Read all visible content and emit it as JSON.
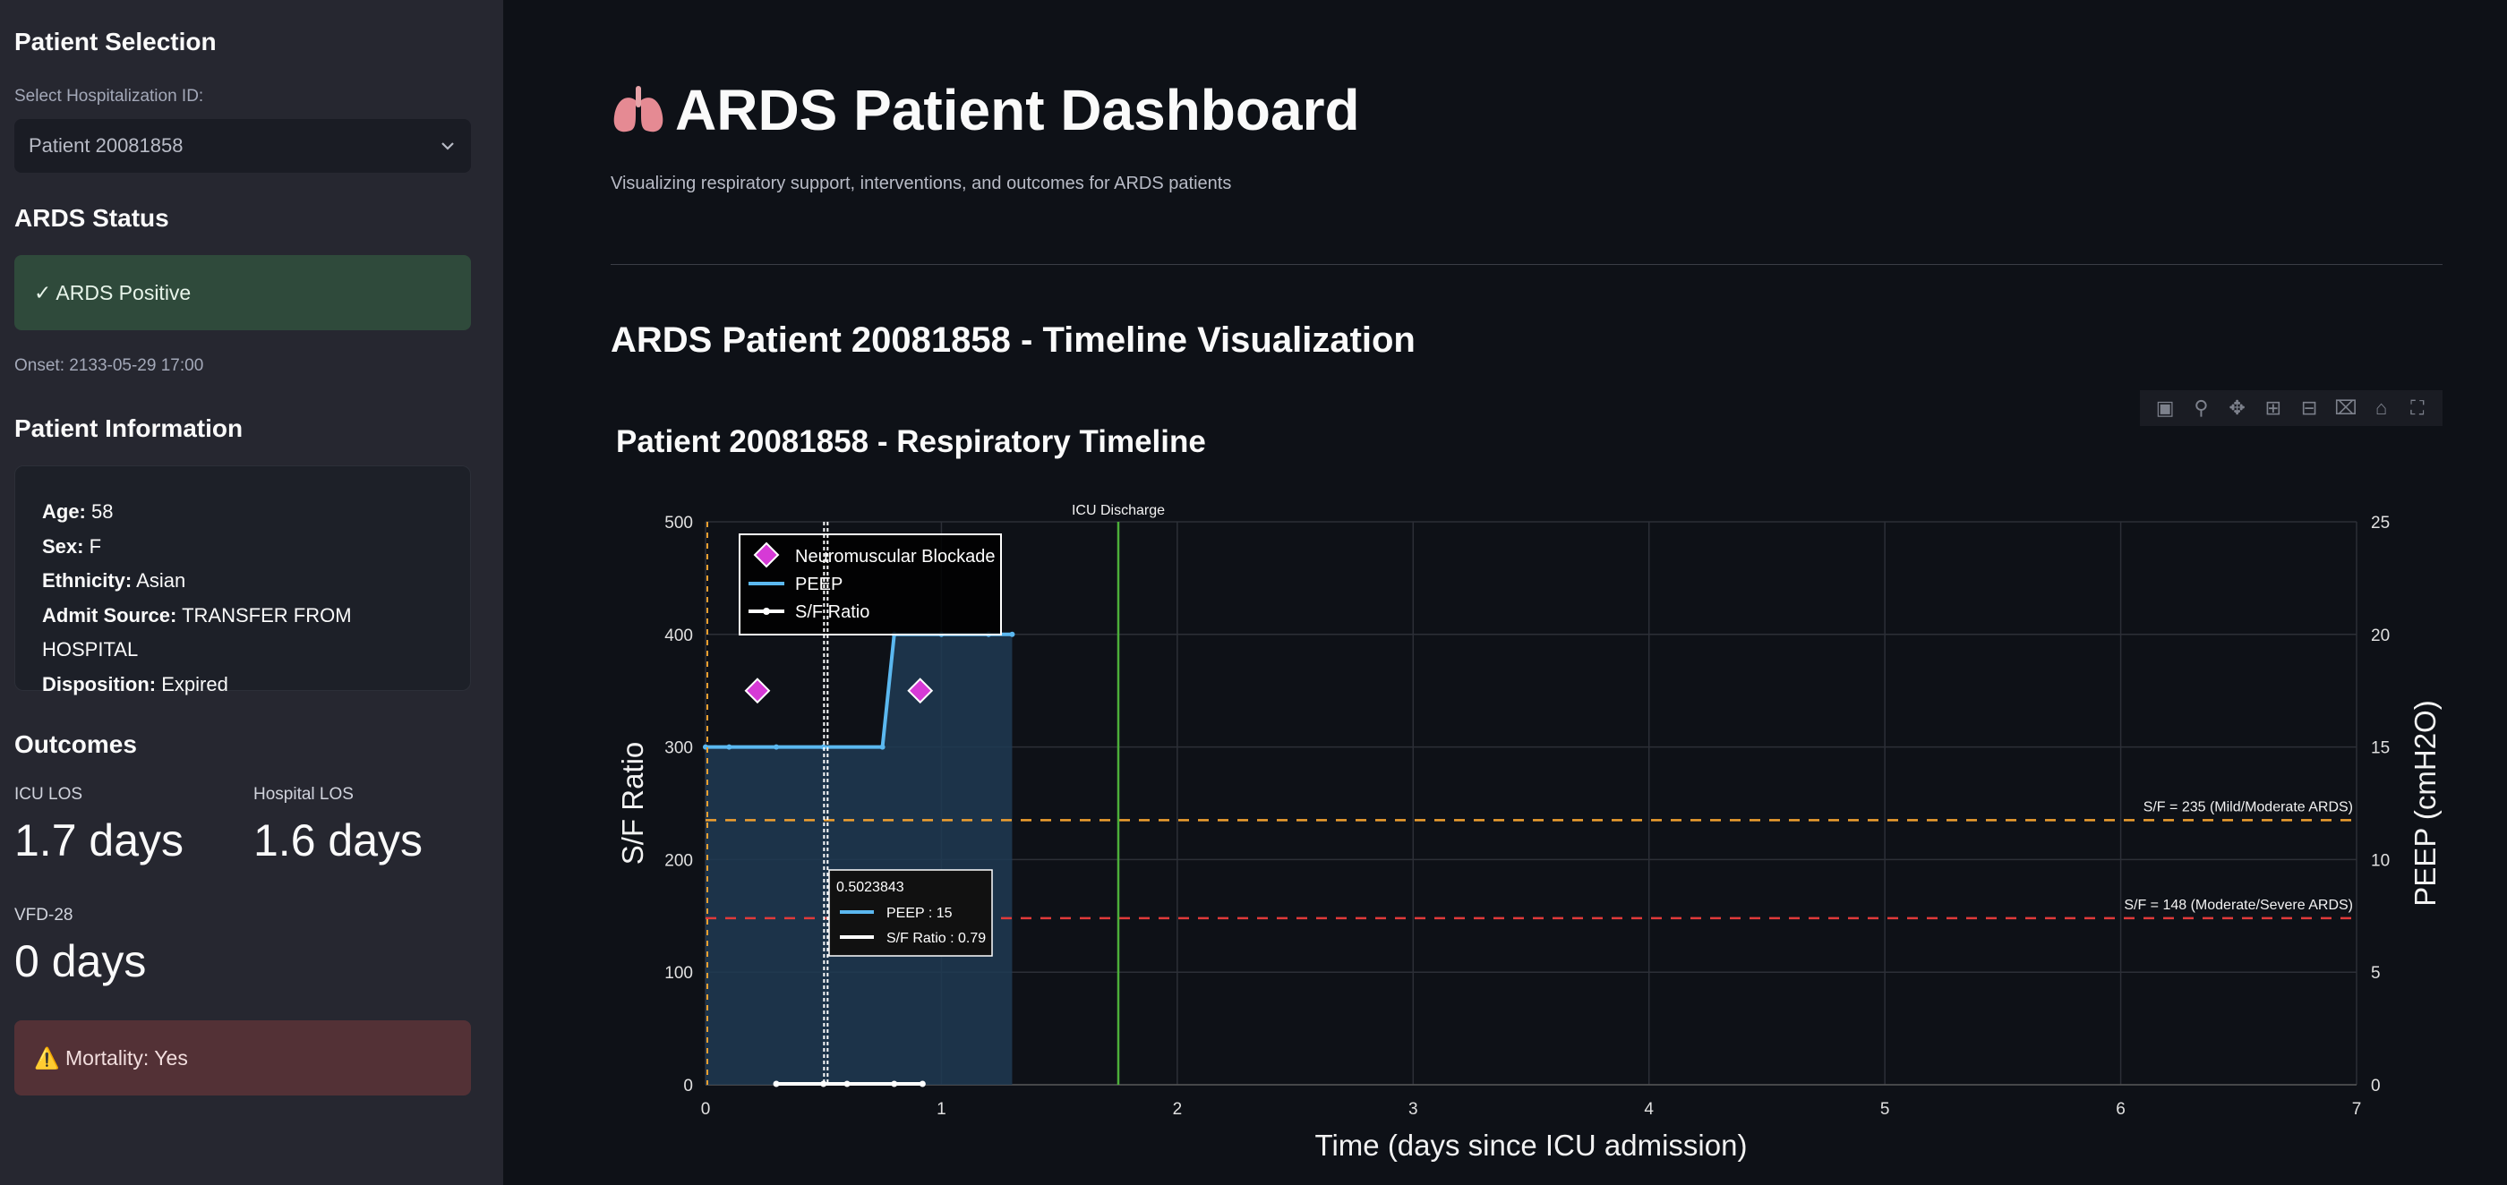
{
  "sidebar": {
    "patient_selection_title": "Patient Selection",
    "select_label": "Select Hospitalization ID:",
    "select_value": "Patient 20081858",
    "ards_status_title": "ARDS Status",
    "ards_status_text": "✓ ARDS Positive",
    "onset_text": "Onset: 2133-05-29 17:00",
    "patient_info_title": "Patient Information",
    "info": [
      {
        "label": "Age:",
        "value": "58"
      },
      {
        "label": "Sex:",
        "value": "F"
      },
      {
        "label": "Ethnicity:",
        "value": "Asian"
      },
      {
        "label": "Admit Source:",
        "value": "TRANSFER FROM HOSPITAL"
      },
      {
        "label": "Disposition:",
        "value": "Expired"
      }
    ],
    "outcomes_title": "Outcomes",
    "icu_los_label": "ICU LOS",
    "icu_los_value": "1.7 days",
    "hospital_los_label": "Hospital LOS",
    "hospital_los_value": "1.6 days",
    "vfd_label": "VFD-28",
    "vfd_value": "0 days",
    "mortality_text": "⚠️ Mortality: Yes"
  },
  "main": {
    "title_icon": "lungs-icon",
    "title": "ARDS Patient Dashboard",
    "subtitle": "Visualizing respiratory support, interventions, and outcomes for ARDS patients",
    "section_title": "ARDS Patient 20081858 - Timeline Visualization"
  },
  "modebar_icons": [
    "camera-icon",
    "zoom-icon",
    "pan-icon",
    "zoom-in-icon",
    "zoom-out-icon",
    "autoscale-icon",
    "reset-axes-icon",
    "fullscreen-icon"
  ],
  "chart_data": {
    "type": "line",
    "title": "Patient 20081858 - Respiratory Timeline",
    "xlabel": "Time (days since ICU admission)",
    "ylabel": "S/F Ratio",
    "y2label": "PEEP (cmH2O)",
    "xlim": [
      0,
      7
    ],
    "ylim": [
      0,
      500
    ],
    "y2lim": [
      0,
      25
    ],
    "x_ticks": [
      "0",
      "1",
      "2",
      "3",
      "4",
      "5",
      "6",
      "7"
    ],
    "y_ticks": [
      "0",
      "100",
      "200",
      "300",
      "400",
      "500"
    ],
    "y2_ticks": [
      "0",
      "5",
      "10",
      "15",
      "20",
      "25"
    ],
    "grid": true,
    "legend_position": "top-left",
    "series": [
      {
        "name": "PEEP",
        "axis": "y2",
        "color": "#5bb8f0",
        "x": [
          0,
          0.1,
          0.3,
          0.5,
          0.75,
          0.8,
          1.0,
          1.2,
          1.3
        ],
        "values": [
          15,
          15,
          15,
          15,
          15,
          20,
          20,
          20,
          20
        ]
      },
      {
        "name": "S/F Ratio",
        "axis": "y",
        "color": "#ffffff",
        "x": [
          0.3,
          0.5,
          0.6,
          0.8,
          0.92
        ],
        "values": [
          0.8,
          0.79,
          0.8,
          0.8,
          0.8
        ]
      },
      {
        "name": "Neuromuscular Blockade",
        "type": "scatter",
        "marker": "diamond",
        "color": "#d63ad6",
        "x": [
          0.22,
          0.91
        ],
        "values": [
          350,
          350
        ]
      }
    ],
    "thresholds": [
      {
        "value": 235,
        "label": "S/F = 235 (Mild/Moderate ARDS)",
        "color": "#f0a030"
      },
      {
        "value": 148,
        "label": "S/F = 148 (Moderate/Severe ARDS)",
        "color": "#e03a3a"
      }
    ],
    "events": [
      {
        "x": 1.75,
        "label": "ICU Discharge",
        "color": "#4caf3a"
      },
      {
        "x": 0.0,
        "label": "",
        "color": "#f0a030"
      }
    ],
    "hover": {
      "x": 0.5023843,
      "title": "0.5023843",
      "rows": [
        "PEEP : 15",
        "S/F Ratio : 0.79"
      ]
    }
  }
}
